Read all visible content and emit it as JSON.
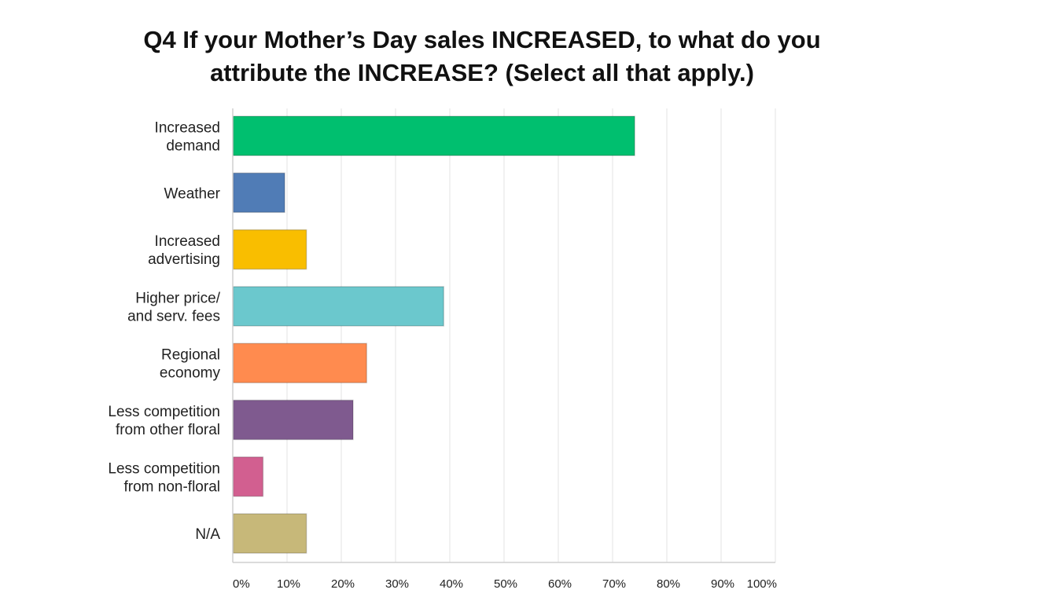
{
  "chart_data": {
    "type": "bar",
    "orientation": "horizontal",
    "title": [
      "Q4 If your Mother’s Day sales INCREASED, to what do you",
      "attribute the INCREASE? (Select all that apply.)"
    ],
    "categories": [
      [
        "Increased",
        "demand"
      ],
      [
        "Weather"
      ],
      [
        "Increased",
        "advertising"
      ],
      [
        "Higher price/",
        "and serv. fees"
      ],
      [
        "Regional",
        "economy"
      ],
      [
        "Less competition",
        "from other floral"
      ],
      [
        "Less competition",
        "from non-floral"
      ],
      [
        "N/A"
      ]
    ],
    "values": [
      74,
      9.5,
      13.5,
      38.8,
      24.6,
      22.1,
      5.5,
      13.5
    ],
    "colors": [
      "#00bf6f",
      "#507cb6",
      "#f9be00",
      "#6bc8cd",
      "#ff8b4f",
      "#7f5a8f",
      "#d25f90",
      "#c7b879"
    ],
    "xlim": [
      0,
      100
    ],
    "x_ticks": [
      "0%",
      "10%",
      "20%",
      "30%",
      "40%",
      "50%",
      "60%",
      "70%",
      "80%",
      "90%",
      "100%"
    ],
    "grid": true,
    "legend": "none"
  }
}
